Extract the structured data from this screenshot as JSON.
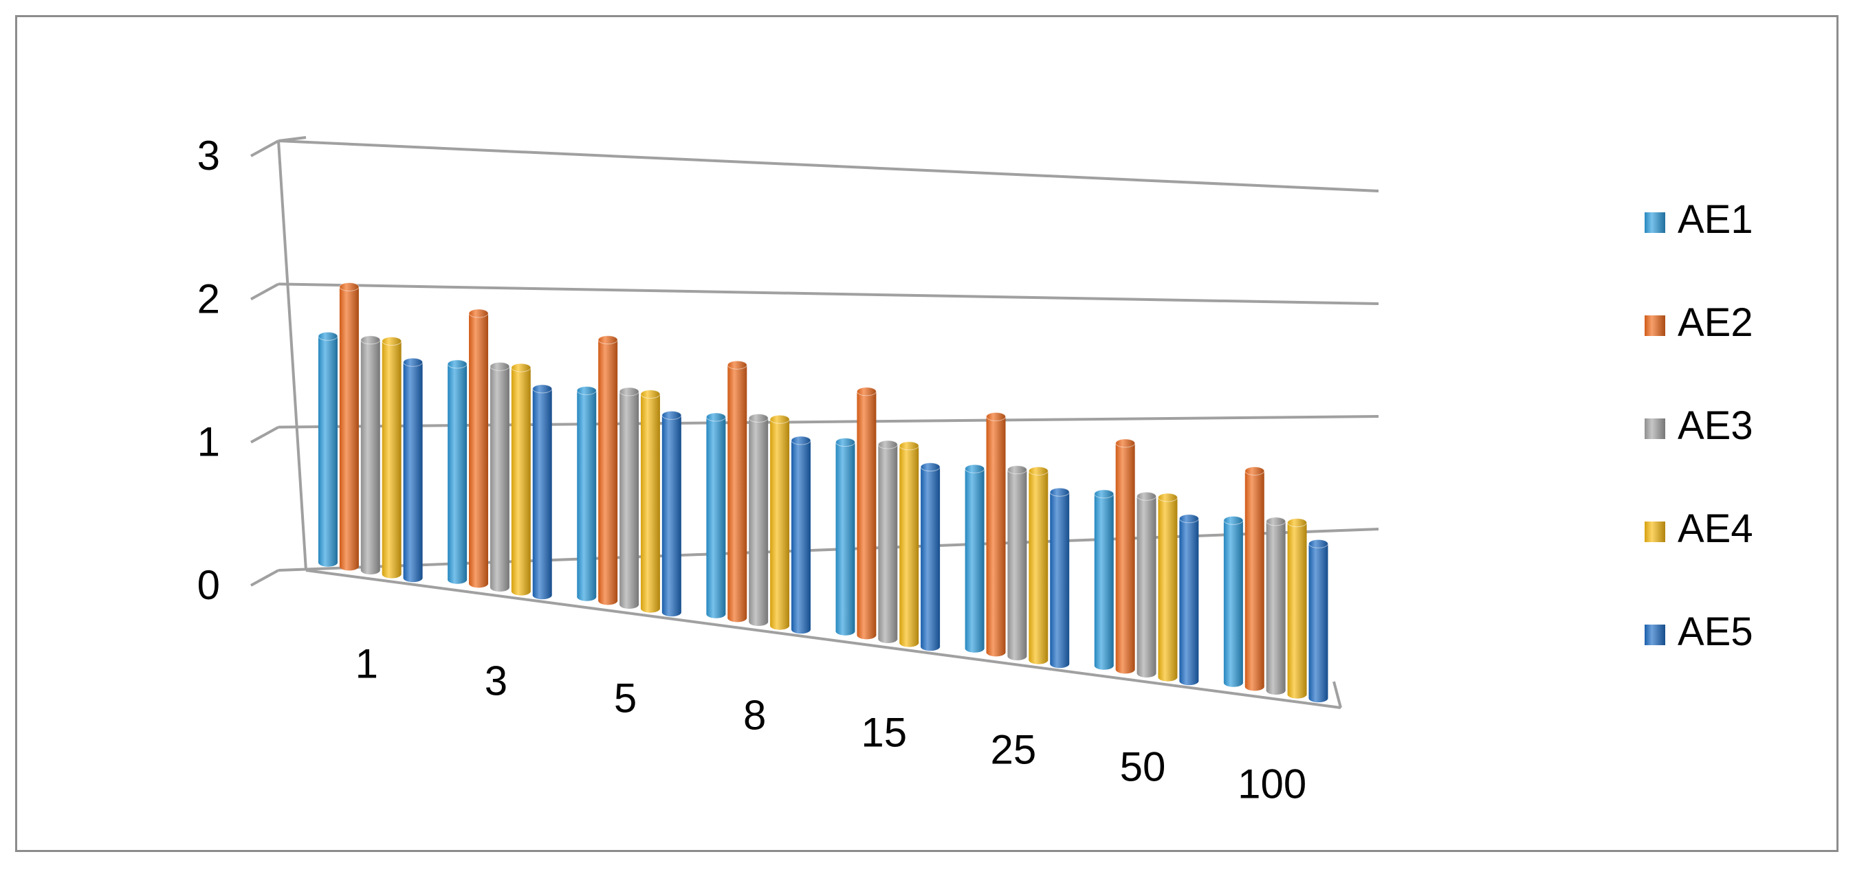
{
  "chart_data": {
    "type": "bar",
    "categories": [
      "1",
      "3",
      "5",
      "8",
      "15",
      "25",
      "50",
      "100"
    ],
    "series": [
      {
        "name": "AE1",
        "color": "#2e9fe0",
        "values": [
          1.7,
          1.62,
          1.55,
          1.48,
          1.42,
          1.35,
          1.29,
          1.22
        ]
      },
      {
        "name": "AE2",
        "color": "#f36b1c",
        "values": [
          2.1,
          2.03,
          1.96,
          1.9,
          1.83,
          1.77,
          1.7,
          1.62
        ]
      },
      {
        "name": "AE3",
        "color": "#a8a8a8",
        "values": [
          1.73,
          1.66,
          1.6,
          1.53,
          1.46,
          1.4,
          1.33,
          1.27
        ]
      },
      {
        "name": "AE4",
        "color": "#fbbd12",
        "values": [
          1.75,
          1.68,
          1.61,
          1.55,
          1.48,
          1.42,
          1.35,
          1.29
        ]
      },
      {
        "name": "AE5",
        "color": "#1f6ec8",
        "values": [
          1.62,
          1.55,
          1.48,
          1.42,
          1.35,
          1.29,
          1.22,
          1.16
        ]
      }
    ],
    "y_ticks": [
      "0",
      "1",
      "2",
      "3"
    ],
    "ylim": [
      0,
      3
    ],
    "grid": true,
    "legend_position": "right",
    "title": "",
    "xlabel": "",
    "ylabel": ""
  }
}
